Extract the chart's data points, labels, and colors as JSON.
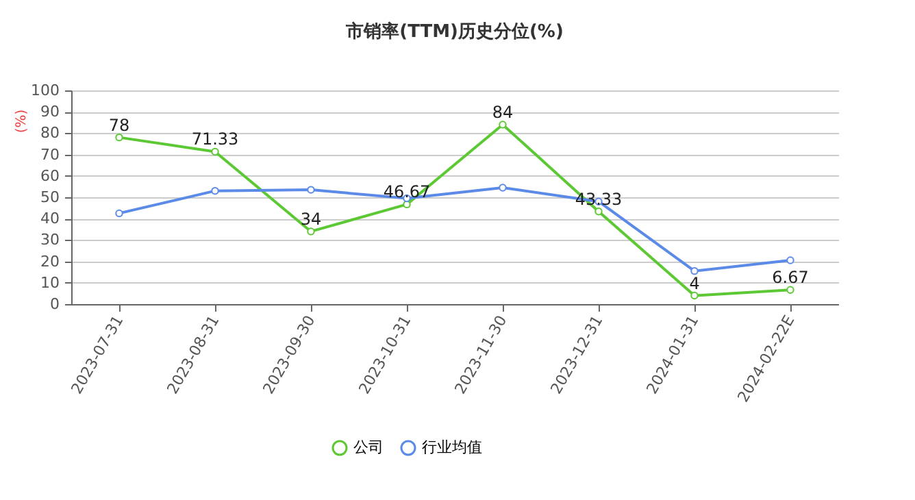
{
  "chart_data": {
    "type": "line",
    "title": "市销率(TTM)历史分位(%)",
    "ylabel": "(%)",
    "categories": [
      "2023-07-31",
      "2023-08-31",
      "2023-09-30",
      "2023-10-31",
      "2023-11-30",
      "2023-12-31",
      "2024-01-31",
      "2024-02-22E"
    ],
    "series": [
      {
        "name": "公司",
        "color": "#5cc934",
        "values": [
          78,
          71.33,
          34,
          46.67,
          84,
          43.33,
          4,
          6.67
        ],
        "value_labels": [
          "78",
          "71.33",
          "34",
          "46.67",
          "84",
          "43.33",
          "4",
          "6.67"
        ]
      },
      {
        "name": "行业均值",
        "color": "#5b8ae8",
        "values": [
          42.5,
          53,
          53.5,
          49.5,
          54.5,
          48,
          15.5,
          20.5
        ]
      }
    ],
    "ylim": [
      0,
      100
    ],
    "yticks": [
      0,
      10,
      20,
      30,
      40,
      50,
      60,
      70,
      80,
      90,
      100
    ],
    "grid": "y",
    "legend": "bottom",
    "marker": "circle",
    "line_style": "solid"
  }
}
